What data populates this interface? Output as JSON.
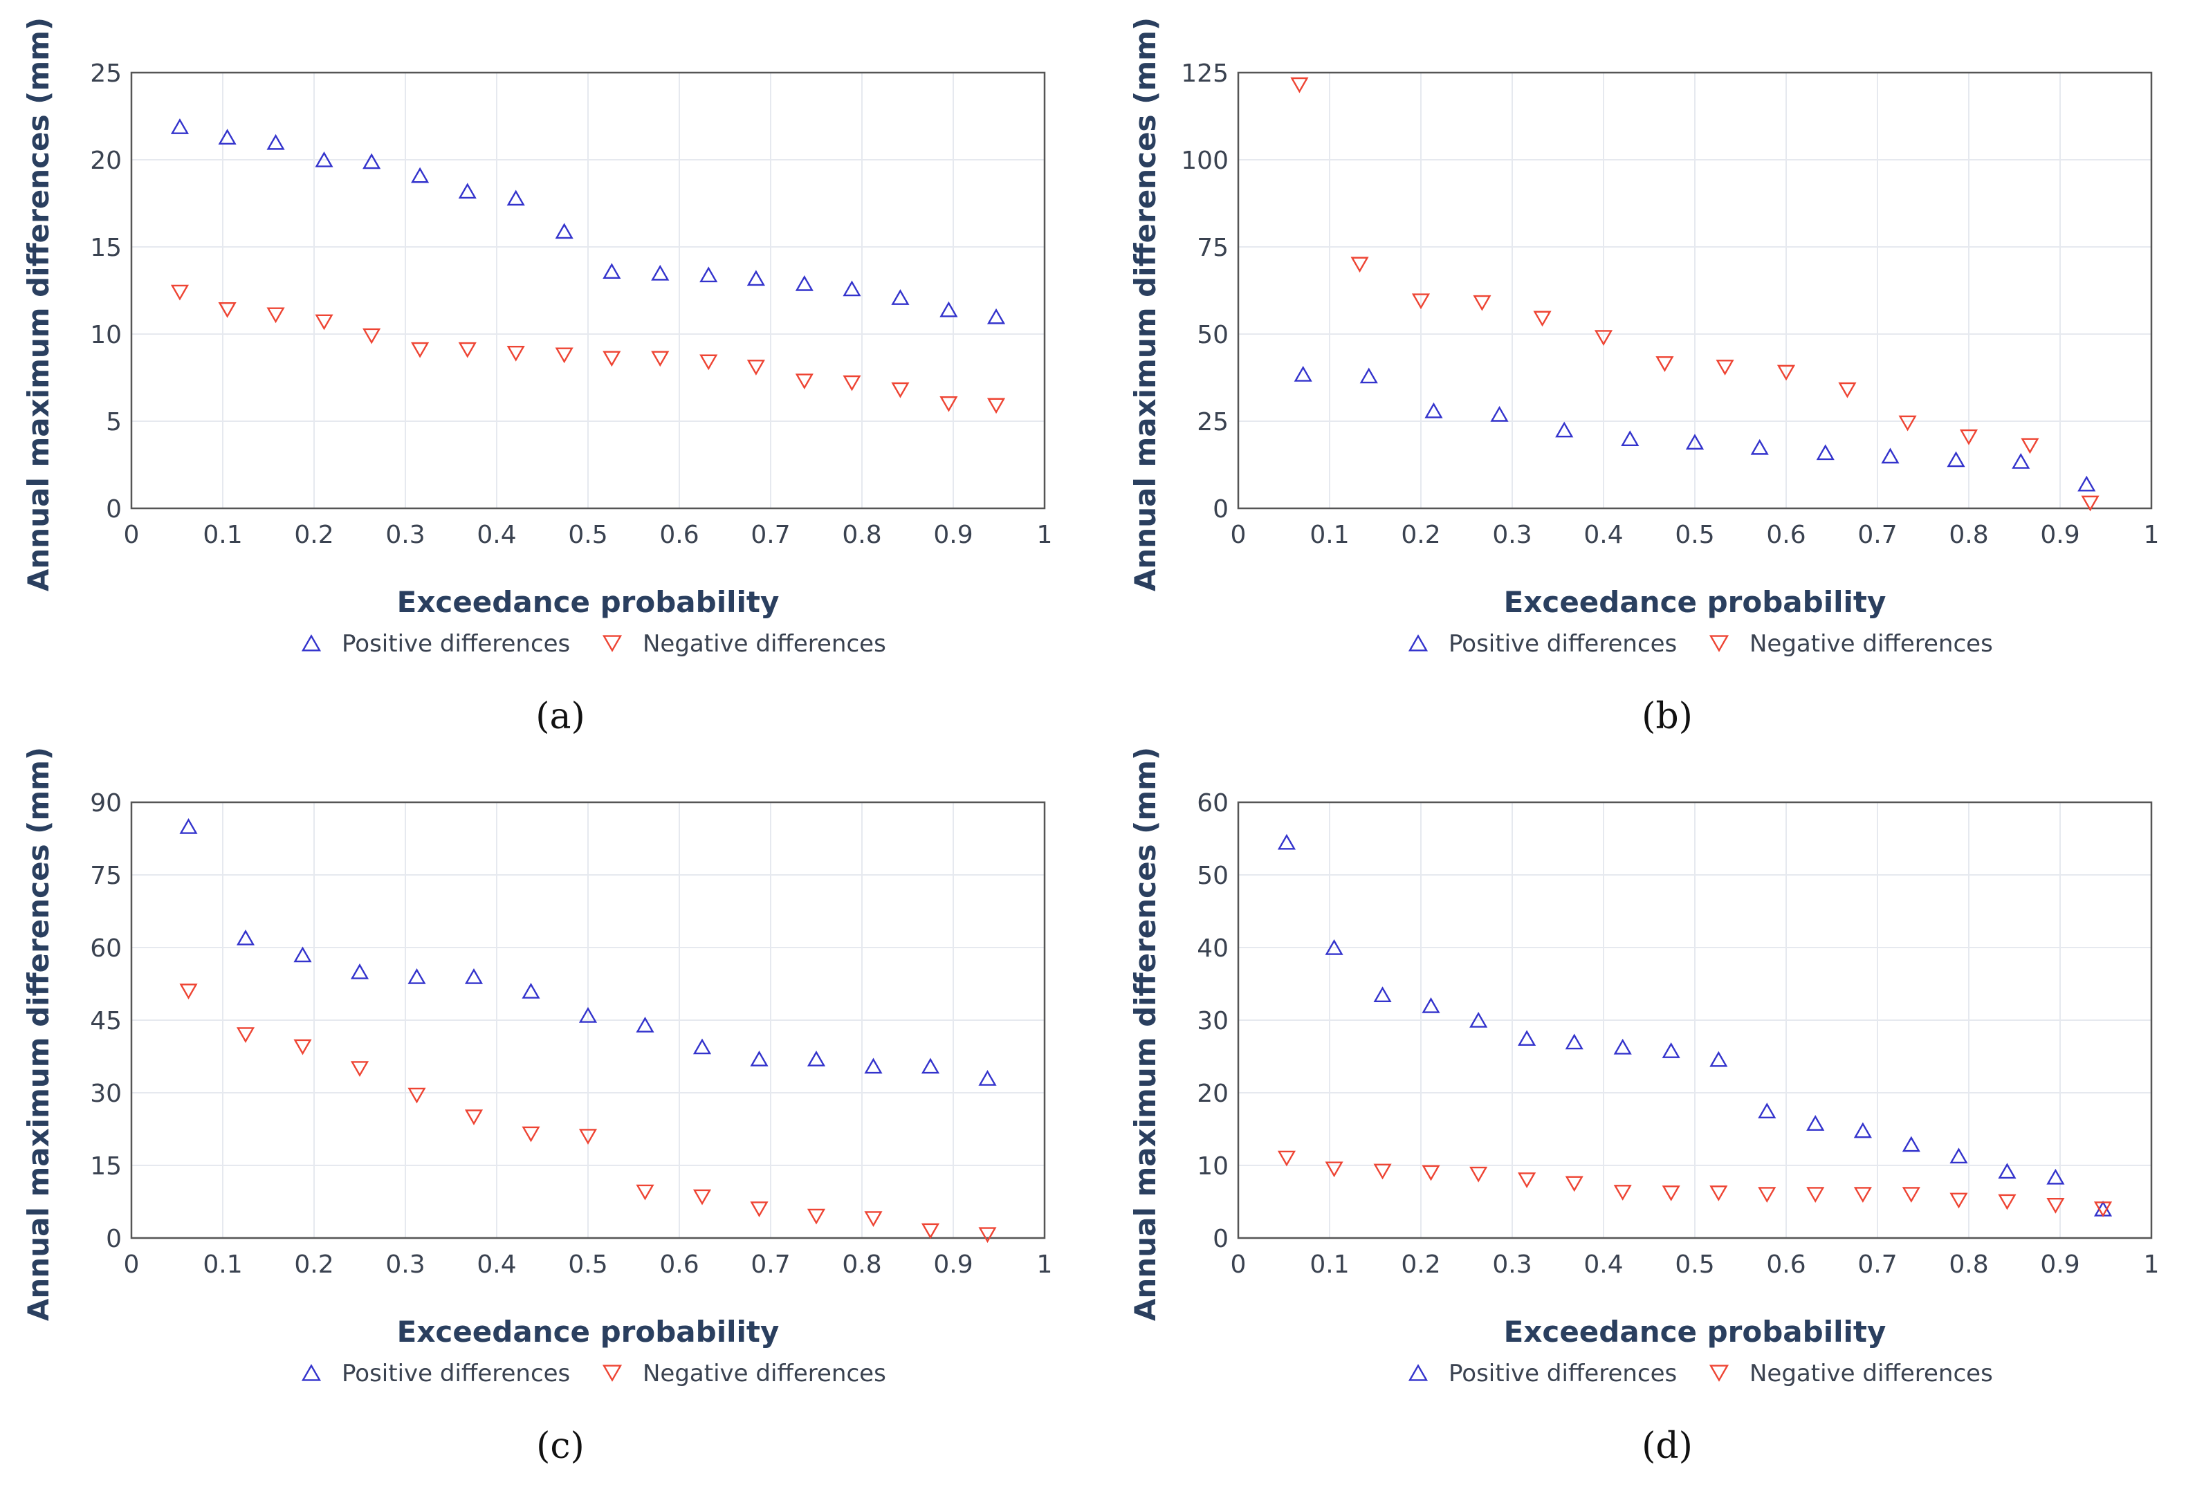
{
  "colors": {
    "positive": "#3333cc",
    "negative": "#ee4433",
    "text": "#2a3f5f",
    "grid": "#e6e9ef",
    "axis": "#555555"
  },
  "chart_data": [
    {
      "id": "a",
      "type": "scatter",
      "panel_label": "(a)",
      "xlabel": "Exceedance probability",
      "ylabel": "Annual maximum differences (mm)",
      "xlim": [
        0,
        1
      ],
      "ylim": [
        0,
        25
      ],
      "xticks": [
        0,
        0.1,
        0.2,
        0.3,
        0.4,
        0.5,
        0.6,
        0.7,
        0.8,
        0.9,
        1
      ],
      "xtick_labels": [
        "0",
        "0.1",
        "0.2",
        "0.3",
        "0.4",
        "0.5",
        "0.6",
        "0.7",
        "0.8",
        "0.9",
        "1"
      ],
      "yticks": [
        0,
        5,
        10,
        15,
        20,
        25
      ],
      "ytick_labels": [
        "0",
        "5",
        "10",
        "15",
        "20",
        "25"
      ],
      "legend": [
        "Positive differences",
        "Negative differences"
      ],
      "series": [
        {
          "name": "Positive differences",
          "marker": "triangle-up",
          "x": [
            0.053,
            0.105,
            0.158,
            0.211,
            0.263,
            0.316,
            0.368,
            0.421,
            0.474,
            0.526,
            0.579,
            0.632,
            0.684,
            0.737,
            0.789,
            0.842,
            0.895,
            0.947
          ],
          "y": [
            21.9,
            21.3,
            21.0,
            20.0,
            19.9,
            19.1,
            18.2,
            17.8,
            15.9,
            13.6,
            13.5,
            13.4,
            13.2,
            12.9,
            12.6,
            12.1,
            11.4,
            11.0
          ]
        },
        {
          "name": "Negative differences",
          "marker": "triangle-down",
          "x": [
            0.053,
            0.105,
            0.158,
            0.211,
            0.263,
            0.316,
            0.368,
            0.421,
            0.474,
            0.526,
            0.579,
            0.632,
            0.684,
            0.737,
            0.789,
            0.842,
            0.895,
            0.947
          ],
          "y": [
            12.4,
            11.4,
            11.1,
            10.7,
            9.9,
            9.1,
            9.1,
            8.9,
            8.8,
            8.6,
            8.6,
            8.4,
            8.1,
            7.3,
            7.2,
            6.8,
            6.0,
            5.9
          ]
        }
      ]
    },
    {
      "id": "b",
      "type": "scatter",
      "panel_label": "(b)",
      "xlabel": "Exceedance probability",
      "ylabel": "Annual maximum differences (mm)",
      "xlim": [
        0,
        1
      ],
      "ylim": [
        0,
        125
      ],
      "xticks": [
        0,
        0.1,
        0.2,
        0.3,
        0.4,
        0.5,
        0.6,
        0.7,
        0.8,
        0.9,
        1
      ],
      "xtick_labels": [
        "0",
        "0.1",
        "0.2",
        "0.3",
        "0.4",
        "0.5",
        "0.6",
        "0.7",
        "0.8",
        "0.9",
        "1"
      ],
      "yticks": [
        0,
        25,
        50,
        75,
        100,
        125
      ],
      "ytick_labels": [
        "0",
        "25",
        "50",
        "75",
        "100",
        "125"
      ],
      "legend": [
        "Positive differences",
        "Negative differences"
      ],
      "series": [
        {
          "name": "Positive differences",
          "marker": "triangle-up",
          "x": [
            0.071,
            0.143,
            0.214,
            0.286,
            0.357,
            0.429,
            0.5,
            0.571,
            0.643,
            0.714,
            0.786,
            0.857,
            0.929
          ],
          "y": [
            38.5,
            38.0,
            28.0,
            27.0,
            22.5,
            20.0,
            19.0,
            17.5,
            16.0,
            15.0,
            14.0,
            13.5,
            7.0
          ]
        },
        {
          "name": "Negative differences",
          "marker": "triangle-down",
          "x": [
            0.067,
            0.133,
            0.2,
            0.267,
            0.333,
            0.4,
            0.467,
            0.533,
            0.6,
            0.667,
            0.733,
            0.8,
            0.867,
            0.933
          ],
          "y": [
            121.5,
            70.0,
            59.5,
            59.0,
            54.5,
            49.0,
            41.5,
            40.5,
            39.0,
            34.0,
            24.5,
            20.5,
            18.0,
            1.5
          ]
        }
      ]
    },
    {
      "id": "c",
      "type": "scatter",
      "panel_label": "(c)",
      "xlabel": "Exceedance probability",
      "ylabel": "Annual maximum differences (mm)",
      "xlim": [
        0,
        1
      ],
      "ylim": [
        0,
        90
      ],
      "xticks": [
        0,
        0.1,
        0.2,
        0.3,
        0.4,
        0.5,
        0.6,
        0.7,
        0.8,
        0.9,
        1
      ],
      "xtick_labels": [
        "0",
        "0.1",
        "0.2",
        "0.3",
        "0.4",
        "0.5",
        "0.6",
        "0.7",
        "0.8",
        "0.9",
        "1"
      ],
      "yticks": [
        0,
        15,
        30,
        45,
        60,
        75,
        90
      ],
      "ytick_labels": [
        "0",
        "15",
        "30",
        "45",
        "60",
        "75",
        "90"
      ],
      "legend": [
        "Positive differences",
        "Negative differences"
      ],
      "series": [
        {
          "name": "Positive differences",
          "marker": "triangle-up",
          "x": [
            0.0625,
            0.125,
            0.1875,
            0.25,
            0.3125,
            0.375,
            0.4375,
            0.5,
            0.5625,
            0.625,
            0.6875,
            0.75,
            0.8125,
            0.875,
            0.9375
          ],
          "y": [
            85.0,
            62.0,
            58.5,
            55.0,
            54.0,
            54.0,
            51.0,
            46.0,
            44.0,
            39.5,
            37.0,
            37.0,
            35.5,
            35.5,
            33.0
          ]
        },
        {
          "name": "Negative differences",
          "marker": "triangle-down",
          "x": [
            0.0625,
            0.125,
            0.1875,
            0.25,
            0.3125,
            0.375,
            0.4375,
            0.5,
            0.5625,
            0.625,
            0.6875,
            0.75,
            0.8125,
            0.875,
            0.9375
          ],
          "y": [
            51.0,
            42.0,
            39.5,
            35.0,
            29.5,
            25.0,
            21.5,
            21.0,
            9.5,
            8.5,
            6.0,
            4.5,
            4.0,
            1.5,
            0.7
          ]
        }
      ]
    },
    {
      "id": "d",
      "type": "scatter",
      "panel_label": "(d)",
      "xlabel": "Exceedance probability",
      "ylabel": "Annual maximum differences (mm)",
      "xlim": [
        0,
        1
      ],
      "ylim": [
        0,
        60
      ],
      "xticks": [
        0,
        0.1,
        0.2,
        0.3,
        0.4,
        0.5,
        0.6,
        0.7,
        0.8,
        0.9,
        1
      ],
      "xtick_labels": [
        "0",
        "0.1",
        "0.2",
        "0.3",
        "0.4",
        "0.5",
        "0.6",
        "0.7",
        "0.8",
        "0.9",
        "1"
      ],
      "yticks": [
        0,
        10,
        20,
        30,
        40,
        50,
        60
      ],
      "ytick_labels": [
        "0",
        "10",
        "20",
        "30",
        "40",
        "50",
        "60"
      ],
      "legend": [
        "Positive differences",
        "Negative differences"
      ],
      "series": [
        {
          "name": "Positive differences",
          "marker": "triangle-up",
          "x": [
            0.053,
            0.105,
            0.158,
            0.211,
            0.263,
            0.316,
            0.368,
            0.421,
            0.474,
            0.526,
            0.579,
            0.632,
            0.684,
            0.737,
            0.789,
            0.842,
            0.895,
            0.947
          ],
          "y": [
            54.5,
            40.0,
            33.5,
            32.0,
            30.0,
            27.5,
            27.0,
            26.3,
            25.8,
            24.6,
            17.5,
            15.8,
            14.8,
            12.9,
            11.3,
            9.2,
            8.4,
            4.0
          ]
        },
        {
          "name": "Negative differences",
          "marker": "triangle-down",
          "x": [
            0.053,
            0.105,
            0.158,
            0.211,
            0.263,
            0.316,
            0.368,
            0.421,
            0.474,
            0.526,
            0.579,
            0.632,
            0.684,
            0.737,
            0.789,
            0.842,
            0.895,
            0.947
          ],
          "y": [
            11.0,
            9.5,
            9.2,
            9.0,
            8.8,
            8.0,
            7.5,
            6.3,
            6.2,
            6.2,
            6.0,
            6.0,
            6.0,
            6.0,
            5.2,
            5.0,
            4.5,
            4.0
          ]
        }
      ]
    }
  ]
}
